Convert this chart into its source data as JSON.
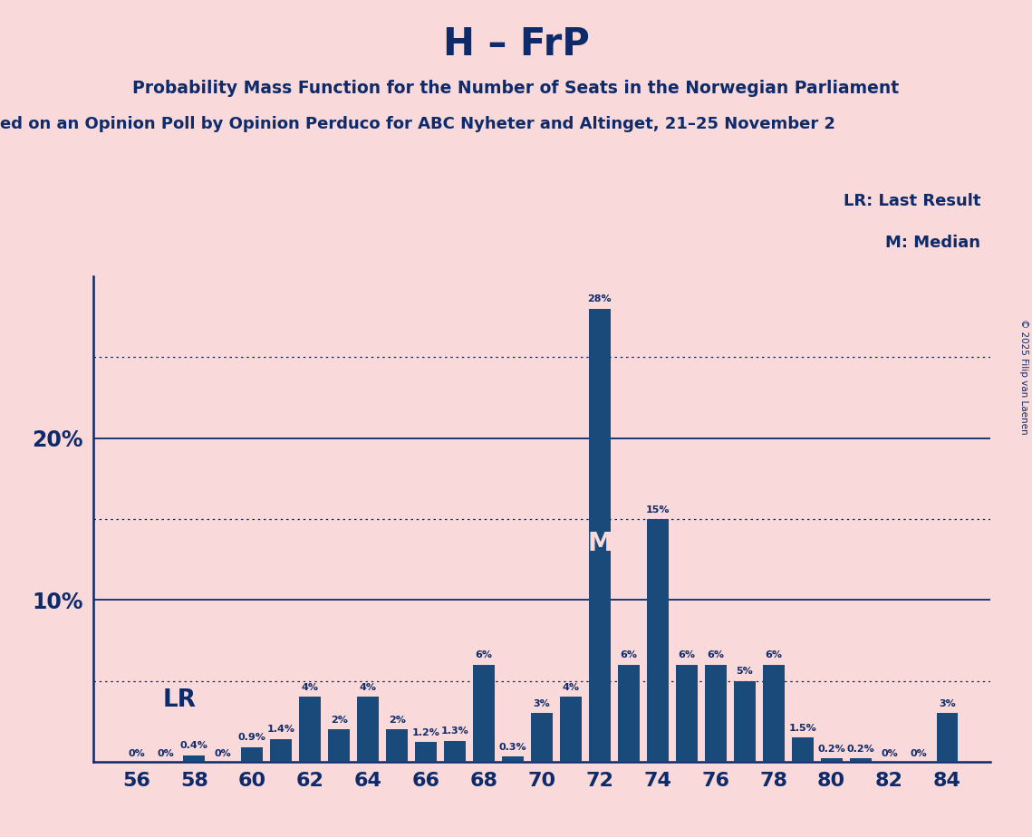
{
  "title": "H – FrP",
  "subtitle1": "Probability Mass Function for the Number of Seats in the Norwegian Parliament",
  "subtitle2": "ed on an Opinion Poll by Opinion Perduco for ABC Nyheter and Altinget, 21–25 November 2",
  "copyright": "© 2025 Filip van Laenen",
  "seats": [
    56,
    57,
    58,
    59,
    60,
    61,
    62,
    63,
    64,
    65,
    66,
    67,
    68,
    69,
    70,
    71,
    72,
    73,
    74,
    75,
    76,
    77,
    78,
    79,
    80,
    81,
    82,
    83,
    84
  ],
  "probabilities": [
    0.0,
    0.0,
    0.4,
    0.0,
    0.9,
    1.4,
    4.0,
    2.0,
    4.0,
    2.0,
    1.2,
    1.3,
    6.0,
    0.3,
    3.0,
    4.0,
    28.0,
    6.0,
    15.0,
    6.0,
    6.0,
    5.0,
    6.0,
    1.5,
    0.2,
    0.2,
    0.0,
    0.0,
    3.0
  ],
  "labels": [
    "0%",
    "0%",
    "0.4%",
    "0%",
    "0.9%",
    "1.4%",
    "4%",
    "2%",
    "4%",
    "2%",
    "1.2%",
    "1.3%",
    "6%",
    "0.3%",
    "3%",
    "4%",
    "28%",
    "6%",
    "15%",
    "6%",
    "6%",
    "5%",
    "6%",
    "1.5%",
    "0.2%",
    "0.2%",
    "0%",
    "0%",
    "3%"
  ],
  "bar_color": "#1a4a7a",
  "background_color": "#f9d9d9",
  "text_color": "#0d2a6b",
  "lr_seat": 62,
  "median_seat": 72,
  "solid_yticks": [
    10,
    20
  ],
  "dotted_yticks": [
    5,
    15,
    25
  ],
  "ylim": [
    0,
    30
  ]
}
